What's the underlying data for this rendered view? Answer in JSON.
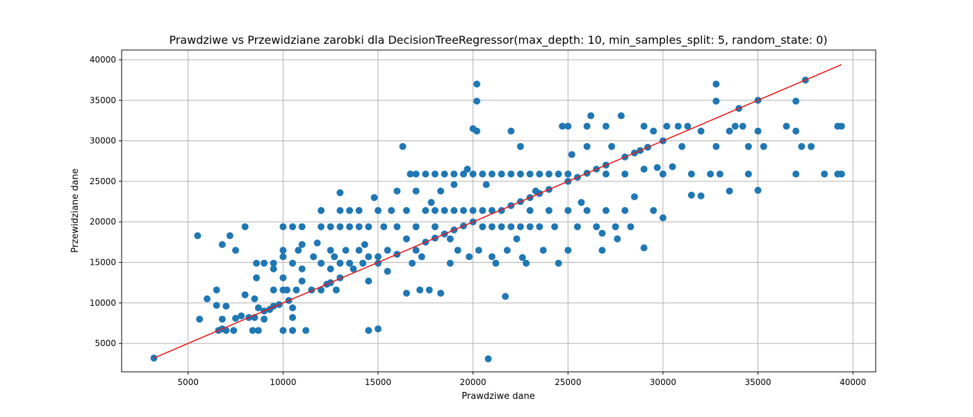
{
  "chart_data": {
    "type": "scatter",
    "title": "Prawdziwe vs Przewidziane zarobki dla DecisionTreeRegressor(max_depth: 10, min_samples_split: 5, random_state: 0)",
    "xlabel": "Prawdziwe dane",
    "ylabel": "Przewidziane dane",
    "xlim": [
      1500,
      41200
    ],
    "ylim": [
      1500,
      41200
    ],
    "xticks": [
      5000,
      10000,
      15000,
      20000,
      25000,
      30000,
      35000,
      40000
    ],
    "yticks": [
      5000,
      10000,
      15000,
      20000,
      25000,
      30000,
      35000,
      40000
    ],
    "grid": true,
    "colors": {
      "points": "#1f77b4",
      "line": "#e41a1c",
      "grid": "#b0b0b0"
    },
    "reference_line": {
      "x": [
        3200,
        39400
      ],
      "y": [
        3200,
        39400
      ]
    },
    "series": [
      {
        "values": [
          [
            3200,
            3200
          ],
          [
            5500,
            18300
          ],
          [
            5600,
            8000
          ],
          [
            6000,
            10500
          ],
          [
            6500,
            9700
          ],
          [
            6500,
            11600
          ],
          [
            6600,
            6600
          ],
          [
            6800,
            6800
          ],
          [
            6800,
            8000
          ],
          [
            6800,
            17200
          ],
          [
            7000,
            9600
          ],
          [
            7000,
            6600
          ],
          [
            7200,
            18300
          ],
          [
            7400,
            6600
          ],
          [
            7500,
            8100
          ],
          [
            7500,
            16500
          ],
          [
            7800,
            8400
          ],
          [
            8000,
            11000
          ],
          [
            8000,
            19400
          ],
          [
            8200,
            8200
          ],
          [
            8400,
            6600
          ],
          [
            8500,
            8200
          ],
          [
            8500,
            10500
          ],
          [
            8600,
            13100
          ],
          [
            8600,
            14900
          ],
          [
            8700,
            6600
          ],
          [
            8700,
            9400
          ],
          [
            9000,
            8000
          ],
          [
            9000,
            9000
          ],
          [
            9000,
            14900
          ],
          [
            9300,
            9200
          ],
          [
            9500,
            9600
          ],
          [
            9500,
            11600
          ],
          [
            9500,
            14200
          ],
          [
            9500,
            14900
          ],
          [
            9800,
            9800
          ],
          [
            10000,
            6600
          ],
          [
            10000,
            11600
          ],
          [
            10000,
            13100
          ],
          [
            10000,
            15700
          ],
          [
            10000,
            16500
          ],
          [
            10000,
            19400
          ],
          [
            10200,
            11600
          ],
          [
            10300,
            10300
          ],
          [
            10500,
            6600
          ],
          [
            10500,
            8200
          ],
          [
            10500,
            9400
          ],
          [
            10500,
            14900
          ],
          [
            10500,
            19400
          ],
          [
            10700,
            11600
          ],
          [
            10800,
            16500
          ],
          [
            11000,
            12700
          ],
          [
            11000,
            14200
          ],
          [
            11000,
            17200
          ],
          [
            11000,
            19400
          ],
          [
            11200,
            6600
          ],
          [
            11500,
            11600
          ],
          [
            11600,
            15700
          ],
          [
            11800,
            17400
          ],
          [
            12000,
            11600
          ],
          [
            12000,
            14900
          ],
          [
            12000,
            19400
          ],
          [
            12000,
            21400
          ],
          [
            12300,
            12300
          ],
          [
            12500,
            12500
          ],
          [
            12500,
            14200
          ],
          [
            12500,
            16500
          ],
          [
            12500,
            19400
          ],
          [
            12700,
            15700
          ],
          [
            12800,
            11600
          ],
          [
            13000,
            13100
          ],
          [
            13000,
            14900
          ],
          [
            13000,
            19400
          ],
          [
            13000,
            21400
          ],
          [
            13000,
            23600
          ],
          [
            13300,
            16500
          ],
          [
            13500,
            14900
          ],
          [
            13500,
            19400
          ],
          [
            13500,
            21400
          ],
          [
            13700,
            14200
          ],
          [
            14000,
            16500
          ],
          [
            14000,
            19400
          ],
          [
            14000,
            21400
          ],
          [
            14200,
            14900
          ],
          [
            14300,
            17200
          ],
          [
            14500,
            6600
          ],
          [
            14500,
            12700
          ],
          [
            14500,
            15700
          ],
          [
            14500,
            19400
          ],
          [
            14800,
            23000
          ],
          [
            15000,
            6800
          ],
          [
            15000,
            14900
          ],
          [
            15000,
            15700
          ],
          [
            15000,
            21400
          ],
          [
            15300,
            19400
          ],
          [
            15500,
            13900
          ],
          [
            15500,
            16500
          ],
          [
            15700,
            21400
          ],
          [
            16000,
            16000
          ],
          [
            16000,
            19400
          ],
          [
            16000,
            23800
          ],
          [
            16300,
            29300
          ],
          [
            16500,
            11200
          ],
          [
            16500,
            17900
          ],
          [
            16500,
            21400
          ],
          [
            16700,
            25900
          ],
          [
            16800,
            14900
          ],
          [
            17000,
            16500
          ],
          [
            17000,
            19400
          ],
          [
            17000,
            23800
          ],
          [
            17000,
            25900
          ],
          [
            17200,
            11600
          ],
          [
            17300,
            15700
          ],
          [
            17500,
            17500
          ],
          [
            17500,
            21400
          ],
          [
            17500,
            25900
          ],
          [
            17700,
            11600
          ],
          [
            17800,
            22400
          ],
          [
            18000,
            18000
          ],
          [
            18000,
            19400
          ],
          [
            18000,
            21400
          ],
          [
            18000,
            25900
          ],
          [
            18300,
            11200
          ],
          [
            18300,
            23800
          ],
          [
            18500,
            18500
          ],
          [
            18500,
            21400
          ],
          [
            18500,
            25900
          ],
          [
            18800,
            14900
          ],
          [
            18800,
            17900
          ],
          [
            19000,
            19000
          ],
          [
            19000,
            21400
          ],
          [
            19000,
            24600
          ],
          [
            19000,
            25900
          ],
          [
            19200,
            16500
          ],
          [
            19500,
            19500
          ],
          [
            19500,
            21400
          ],
          [
            19500,
            25900
          ],
          [
            19700,
            26500
          ],
          [
            19800,
            15700
          ],
          [
            20000,
            20000
          ],
          [
            20000,
            21400
          ],
          [
            20000,
            25900
          ],
          [
            20000,
            31500
          ],
          [
            20200,
            37000
          ],
          [
            20200,
            34900
          ],
          [
            20200,
            31200
          ],
          [
            20300,
            16500
          ],
          [
            20500,
            19400
          ],
          [
            20500,
            21400
          ],
          [
            20500,
            25900
          ],
          [
            20700,
            24600
          ],
          [
            20800,
            3100
          ],
          [
            21000,
            15700
          ],
          [
            21000,
            19400
          ],
          [
            21000,
            21400
          ],
          [
            21000,
            25900
          ],
          [
            21200,
            14900
          ],
          [
            21500,
            19400
          ],
          [
            21500,
            21400
          ],
          [
            21500,
            25900
          ],
          [
            21700,
            10800
          ],
          [
            21800,
            16500
          ],
          [
            22000,
            22000
          ],
          [
            22000,
            19400
          ],
          [
            22000,
            25900
          ],
          [
            22000,
            31200
          ],
          [
            22300,
            17900
          ],
          [
            22500,
            22500
          ],
          [
            22500,
            19400
          ],
          [
            22500,
            25900
          ],
          [
            22500,
            29300
          ],
          [
            22600,
            15600
          ],
          [
            22800,
            14900
          ],
          [
            23000,
            23000
          ],
          [
            23000,
            19400
          ],
          [
            23000,
            25900
          ],
          [
            23000,
            21400
          ],
          [
            23300,
            23800
          ],
          [
            23500,
            23500
          ],
          [
            23500,
            19400
          ],
          [
            23500,
            25900
          ],
          [
            23700,
            16500
          ],
          [
            24000,
            24000
          ],
          [
            24000,
            21400
          ],
          [
            24000,
            25900
          ],
          [
            24300,
            19400
          ],
          [
            24500,
            14900
          ],
          [
            24500,
            25900
          ],
          [
            24700,
            31800
          ],
          [
            25000,
            25000
          ],
          [
            25000,
            16500
          ],
          [
            25000,
            21400
          ],
          [
            25000,
            25900
          ],
          [
            25000,
            31800
          ],
          [
            25200,
            28300
          ],
          [
            25500,
            19400
          ],
          [
            25500,
            25500
          ],
          [
            25700,
            22400
          ],
          [
            26000,
            26000
          ],
          [
            26000,
            21400
          ],
          [
            26000,
            29300
          ],
          [
            26000,
            31800
          ],
          [
            26200,
            33100
          ],
          [
            26500,
            26500
          ],
          [
            26500,
            19400
          ],
          [
            26800,
            18600
          ],
          [
            26800,
            16500
          ],
          [
            27000,
            27000
          ],
          [
            27000,
            21400
          ],
          [
            27000,
            25900
          ],
          [
            27000,
            31800
          ],
          [
            27300,
            29300
          ],
          [
            27500,
            19400
          ],
          [
            27600,
            17900
          ],
          [
            27800,
            33100
          ],
          [
            28000,
            28000
          ],
          [
            28000,
            25900
          ],
          [
            28000,
            21400
          ],
          [
            28300,
            19400
          ],
          [
            28500,
            28500
          ],
          [
            28500,
            23100
          ],
          [
            28800,
            28800
          ],
          [
            29000,
            31800
          ],
          [
            29000,
            16800
          ],
          [
            29000,
            26500
          ],
          [
            29200,
            29200
          ],
          [
            29500,
            21400
          ],
          [
            29500,
            31200
          ],
          [
            29700,
            26700
          ],
          [
            30000,
            30000
          ],
          [
            30000,
            20500
          ],
          [
            30000,
            25900
          ],
          [
            30200,
            31800
          ],
          [
            30500,
            26800
          ],
          [
            30800,
            31800
          ],
          [
            31000,
            29300
          ],
          [
            31300,
            31800
          ],
          [
            31500,
            23300
          ],
          [
            31500,
            25900
          ],
          [
            32000,
            31200
          ],
          [
            32000,
            23200
          ],
          [
            32500,
            25900
          ],
          [
            32800,
            37000
          ],
          [
            32800,
            34900
          ],
          [
            32800,
            29300
          ],
          [
            33000,
            25900
          ],
          [
            33500,
            31200
          ],
          [
            33500,
            23800
          ],
          [
            33800,
            31800
          ],
          [
            34000,
            34000
          ],
          [
            34200,
            31800
          ],
          [
            34500,
            29300
          ],
          [
            34500,
            25900
          ],
          [
            35000,
            35000
          ],
          [
            35000,
            23900
          ],
          [
            35000,
            31200
          ],
          [
            35300,
            29300
          ],
          [
            36500,
            31800
          ],
          [
            37000,
            34900
          ],
          [
            37000,
            31200
          ],
          [
            37000,
            25900
          ],
          [
            37300,
            29300
          ],
          [
            37500,
            37500
          ],
          [
            37800,
            29300
          ],
          [
            38500,
            25900
          ],
          [
            39200,
            31800
          ],
          [
            39200,
            25900
          ],
          [
            39400,
            31800
          ],
          [
            39400,
            25900
          ]
        ]
      }
    ]
  }
}
